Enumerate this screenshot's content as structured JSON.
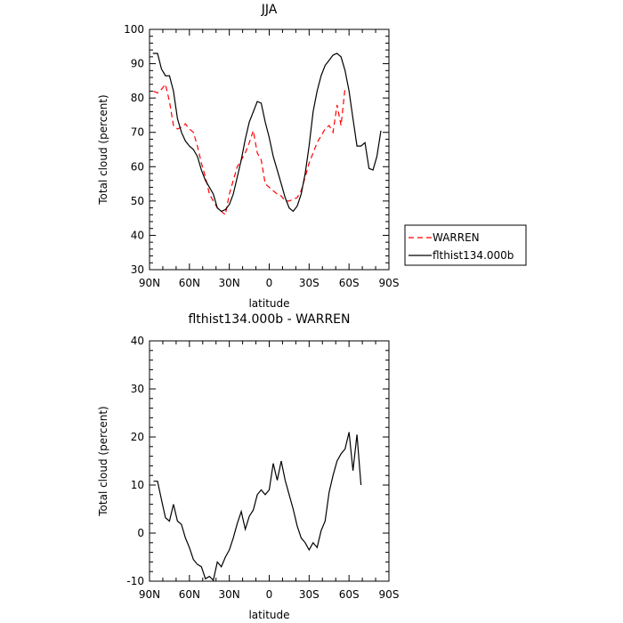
{
  "chart_data": [
    {
      "type": "line",
      "title": "JJA",
      "xlabel": "latitude",
      "ylabel": "Total cloud (percent)",
      "xlim": [
        90,
        -90
      ],
      "ylim": [
        30,
        100
      ],
      "xticks": [
        90,
        60,
        30,
        0,
        -30,
        -60,
        -90
      ],
      "xtick_labels": [
        "90N",
        "60N",
        "30N",
        "0",
        "30S",
        "60S",
        "90S"
      ],
      "yticks": [
        30,
        40,
        50,
        60,
        70,
        80,
        90,
        100
      ],
      "grid": false,
      "legend_position": "right",
      "series": [
        {
          "name": "WARREN",
          "color": "#ff0000",
          "dash": "dashed",
          "points": [
            [
              87,
              82
            ],
            [
              84,
              81.5
            ],
            [
              81,
              82.5
            ],
            [
              78,
              84
            ],
            [
              75,
              79
            ],
            [
              72,
              72
            ],
            [
              69,
              71
            ],
            [
              66,
              71.5
            ],
            [
              63,
              72.5
            ],
            [
              60,
              71
            ],
            [
              57,
              70
            ],
            [
              54,
              66
            ],
            [
              51,
              61
            ],
            [
              48,
              57
            ],
            [
              45,
              52
            ],
            [
              42,
              50
            ],
            [
              39,
              48
            ],
            [
              36,
              47
            ],
            [
              33,
              46
            ],
            [
              30,
              52
            ],
            [
              27,
              56
            ],
            [
              24,
              60
            ],
            [
              21,
              62
            ],
            [
              18,
              64
            ],
            [
              15,
              67
            ],
            [
              12,
              70.5
            ],
            [
              9,
              64
            ],
            [
              6,
              62
            ],
            [
              3,
              55
            ],
            [
              0,
              54
            ],
            [
              -3,
              53
            ],
            [
              -6,
              52
            ],
            [
              -9,
              51.5
            ],
            [
              -12,
              50
            ],
            [
              -15,
              50
            ],
            [
              -18,
              50.5
            ],
            [
              -21,
              51
            ],
            [
              -24,
              53
            ],
            [
              -27,
              57
            ],
            [
              -30,
              61
            ],
            [
              -33,
              64
            ],
            [
              -36,
              67
            ],
            [
              -39,
              69
            ],
            [
              -42,
              71
            ],
            [
              -45,
              72
            ],
            [
              -48,
              70
            ],
            [
              -51,
              78
            ],
            [
              -54,
              72
            ],
            [
              -57,
              83
            ]
          ]
        },
        {
          "name": "flthist134.000b",
          "color": "#000000",
          "dash": "solid",
          "points": [
            [
              87.5,
              93
            ],
            [
              84,
              93
            ],
            [
              81,
              88.5
            ],
            [
              78,
              86.5
            ],
            [
              75,
              86.5
            ],
            [
              72,
              82
            ],
            [
              69,
              74
            ],
            [
              66,
              70
            ],
            [
              63,
              67.5
            ],
            [
              60,
              66
            ],
            [
              57,
              65
            ],
            [
              54,
              63
            ],
            [
              51,
              59
            ],
            [
              48,
              56
            ],
            [
              45,
              54
            ],
            [
              42,
              52
            ],
            [
              39,
              48
            ],
            [
              36,
              47
            ],
            [
              33,
              47.5
            ],
            [
              30,
              49
            ],
            [
              27,
              52
            ],
            [
              24,
              57
            ],
            [
              21,
              62
            ],
            [
              18,
              68
            ],
            [
              15,
              73
            ],
            [
              12,
              76
            ],
            [
              9,
              79
            ],
            [
              6,
              78.5
            ],
            [
              3,
              73
            ],
            [
              0,
              68.5
            ],
            [
              -3,
              63
            ],
            [
              -6,
              59
            ],
            [
              -9,
              55
            ],
            [
              -12,
              51
            ],
            [
              -15,
              48
            ],
            [
              -18,
              47
            ],
            [
              -21,
              48.5
            ],
            [
              -24,
              52
            ],
            [
              -27,
              58
            ],
            [
              -30,
              66
            ],
            [
              -33,
              76
            ],
            [
              -36,
              82
            ],
            [
              -39,
              86.5
            ],
            [
              -42,
              89.5
            ],
            [
              -45,
              91
            ],
            [
              -48,
              92.5
            ],
            [
              -51,
              93
            ],
            [
              -54,
              92
            ],
            [
              -57,
              88
            ],
            [
              -60,
              82
            ],
            [
              -63,
              74
            ],
            [
              -66,
              66
            ],
            [
              -69,
              66
            ],
            [
              -72,
              67
            ],
            [
              -75,
              59.5
            ],
            [
              -78,
              59
            ],
            [
              -81,
              63
            ],
            [
              -84,
              70.5
            ]
          ]
        }
      ]
    },
    {
      "type": "line",
      "title": "flthist134.000b - WARREN",
      "xlabel": "latitude",
      "ylabel": "Total cloud (percent)",
      "xlim": [
        90,
        -90
      ],
      "ylim": [
        -10,
        40
      ],
      "xticks": [
        90,
        60,
        30,
        0,
        -30,
        -60,
        -90
      ],
      "xtick_labels": [
        "90N",
        "60N",
        "30N",
        "0",
        "30S",
        "60S",
        "90S"
      ],
      "yticks": [
        -10,
        0,
        10,
        20,
        30,
        40
      ],
      "grid": false,
      "series": [
        {
          "color": "#000000",
          "dash": "solid",
          "points": [
            [
              87,
              10.8
            ],
            [
              84,
              10.8
            ],
            [
              81,
              7
            ],
            [
              78,
              3.2
            ],
            [
              75,
              2.5
            ],
            [
              72,
              6
            ],
            [
              69,
              2.5
            ],
            [
              66,
              1.8
            ],
            [
              63,
              -1
            ],
            [
              60,
              -3
            ],
            [
              57,
              -5.5
            ],
            [
              54,
              -6.5
            ],
            [
              51,
              -7
            ],
            [
              48,
              -9.5
            ],
            [
              45,
              -9
            ],
            [
              42,
              -9.8
            ],
            [
              39,
              -6
            ],
            [
              36,
              -7
            ],
            [
              33,
              -5
            ],
            [
              30,
              -3.5
            ],
            [
              27,
              -1
            ],
            [
              24,
              2
            ],
            [
              21,
              4.5
            ],
            [
              18,
              0.8
            ],
            [
              15,
              3.5
            ],
            [
              12,
              4.8
            ],
            [
              9,
              8
            ],
            [
              6,
              9
            ],
            [
              3,
              8
            ],
            [
              0,
              9
            ],
            [
              -3,
              14.5
            ],
            [
              -6,
              11
            ],
            [
              -9,
              15
            ],
            [
              -12,
              11
            ],
            [
              -15,
              8
            ],
            [
              -18,
              5
            ],
            [
              -21,
              1.5
            ],
            [
              -24,
              -1
            ],
            [
              -27,
              -2
            ],
            [
              -30,
              -3.5
            ],
            [
              -33,
              -2
            ],
            [
              -36,
              -3
            ],
            [
              -39,
              0.5
            ],
            [
              -42,
              2.5
            ],
            [
              -45,
              8.5
            ],
            [
              -48,
              12
            ],
            [
              -51,
              15
            ],
            [
              -54,
              16.5
            ],
            [
              -57,
              17.5
            ],
            [
              -60,
              21
            ],
            [
              -63,
              13
            ],
            [
              -66,
              20.5
            ],
            [
              -69,
              10
            ]
          ]
        }
      ]
    }
  ]
}
